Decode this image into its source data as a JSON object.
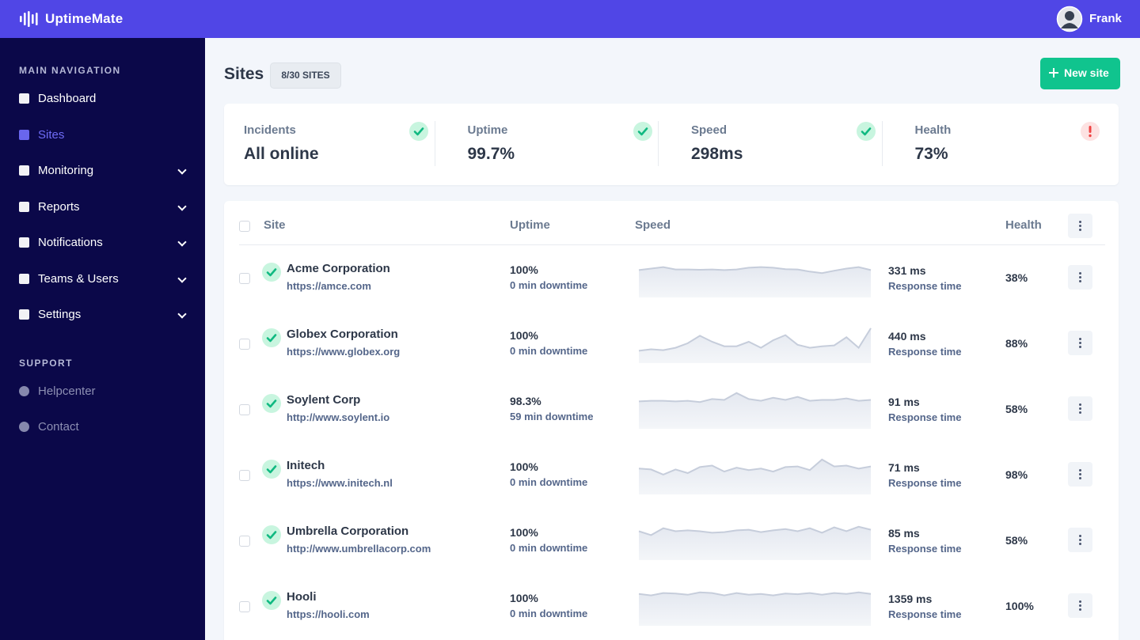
{
  "header": {
    "brand": "UptimeMate",
    "user": "Frank"
  },
  "sidebar": {
    "sections": [
      {
        "title": "MAIN NAVIGATION",
        "items": [
          {
            "label": "Dashboard",
            "active": false,
            "expandable": false
          },
          {
            "label": "Sites",
            "active": true,
            "expandable": false
          },
          {
            "label": "Monitoring",
            "active": false,
            "expandable": true
          },
          {
            "label": "Reports",
            "active": false,
            "expandable": true
          },
          {
            "label": "Notifications",
            "active": false,
            "expandable": true
          },
          {
            "label": "Teams & Users",
            "active": false,
            "expandable": true
          },
          {
            "label": "Settings",
            "active": false,
            "expandable": true
          }
        ]
      },
      {
        "title": "SUPPORT",
        "items": [
          {
            "label": "Helpcenter",
            "active": false,
            "expandable": false
          },
          {
            "label": "Contact",
            "active": false,
            "expandable": false
          }
        ]
      }
    ]
  },
  "page": {
    "title": "Sites",
    "badge": "8/30 SITES",
    "button": "New site"
  },
  "stats": [
    {
      "label": "Incidents",
      "value": "All online",
      "status": "ok"
    },
    {
      "label": "Uptime",
      "value": "99.7%",
      "status": "ok"
    },
    {
      "label": "Speed",
      "value": "298ms",
      "status": "ok"
    },
    {
      "label": "Health",
      "value": "73%",
      "status": "alert"
    }
  ],
  "table": {
    "headers": [
      "Site",
      "Uptime",
      "Speed",
      "Health"
    ],
    "rows": [
      {
        "name": "Acme Corporation",
        "url": "https://amce.com",
        "uptime": "100%",
        "downtime": "0 min downtime",
        "speed": "331 ms",
        "speed_note": "Response time",
        "health": "38%",
        "history": [
          70,
          75,
          80,
          72,
          72,
          71,
          72,
          70,
          72,
          78,
          80,
          78,
          73,
          72,
          65,
          60,
          68,
          75,
          80,
          70
        ]
      },
      {
        "name": "Globex Corporation",
        "url": "https://www.globex.org",
        "uptime": "100%",
        "downtime": "0 min downtime",
        "speed": "440 ms",
        "speed_note": "Response time",
        "health": "88%",
        "history": [
          20,
          25,
          22,
          30,
          45,
          70,
          50,
          35,
          35,
          50,
          30,
          55,
          72,
          40,
          30,
          35,
          38,
          65,
          30,
          95
        ]
      },
      {
        "name": "Soylent Corp",
        "url": "http://www.soylent.io",
        "uptime": "98.3%",
        "downtime": "59 min downtime",
        "speed": "91 ms",
        "speed_note": "Response time",
        "health": "58%",
        "history": [
          70,
          72,
          72,
          70,
          72,
          68,
          78,
          75,
          98,
          78,
          72,
          82,
          75,
          85,
          72,
          75,
          75,
          80,
          72,
          75
        ]
      },
      {
        "name": "Initech",
        "url": "https://www.initech.nl",
        "uptime": "100%",
        "downtime": "0 min downtime",
        "speed": "71 ms",
        "speed_note": "Response time",
        "health": "98%",
        "history": [
          65,
          62,
          45,
          62,
          50,
          70,
          75,
          55,
          68,
          60,
          65,
          55,
          70,
          72,
          60,
          95,
          72,
          75,
          65,
          72
        ]
      },
      {
        "name": "Umbrella Corporation",
        "url": "http://www.umbrellacorp.com",
        "uptime": "100%",
        "downtime": "0 min downtime",
        "speed": "85 ms",
        "speed_note": "Response time",
        "health": "58%",
        "history": [
          75,
          62,
          85,
          75,
          78,
          75,
          70,
          72,
          78,
          80,
          72,
          78,
          82,
          75,
          85,
          70,
          88,
          75,
          90,
          80
        ]
      },
      {
        "name": "Hooli",
        "url": "https://hooli.com",
        "uptime": "100%",
        "downtime": "0 min downtime",
        "speed": "1359 ms",
        "speed_note": "Response time",
        "health": "100%",
        "history": [
          85,
          80,
          88,
          86,
          82,
          90,
          88,
          80,
          88,
          82,
          85,
          80,
          86,
          84,
          88,
          82,
          88,
          85,
          90,
          85
        ]
      }
    ]
  }
}
